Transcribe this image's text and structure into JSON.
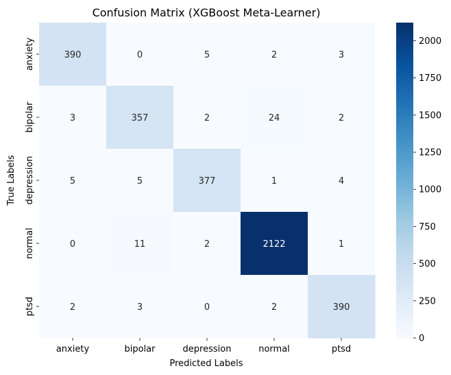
{
  "chart_data": {
    "type": "heatmap",
    "title": "Confusion Matrix (XGBoost Meta-Learner)",
    "xlabel": "Predicted Labels",
    "ylabel": "True Labels",
    "x_categories": [
      "anxiety",
      "bipolar",
      "depression",
      "normal",
      "ptsd"
    ],
    "y_categories": [
      "anxiety",
      "bipolar",
      "depression",
      "normal",
      "ptsd"
    ],
    "values": [
      [
        390,
        0,
        5,
        2,
        3
      ],
      [
        3,
        357,
        2,
        24,
        2
      ],
      [
        5,
        5,
        377,
        1,
        4
      ],
      [
        0,
        11,
        2,
        2122,
        1
      ],
      [
        2,
        3,
        0,
        2,
        390
      ]
    ],
    "colorscale": "Blues",
    "vmin": 0,
    "vmax": 2122,
    "colorbar_ticks": [
      0,
      250,
      500,
      750,
      1000,
      1250,
      1500,
      1750,
      2000
    ]
  }
}
